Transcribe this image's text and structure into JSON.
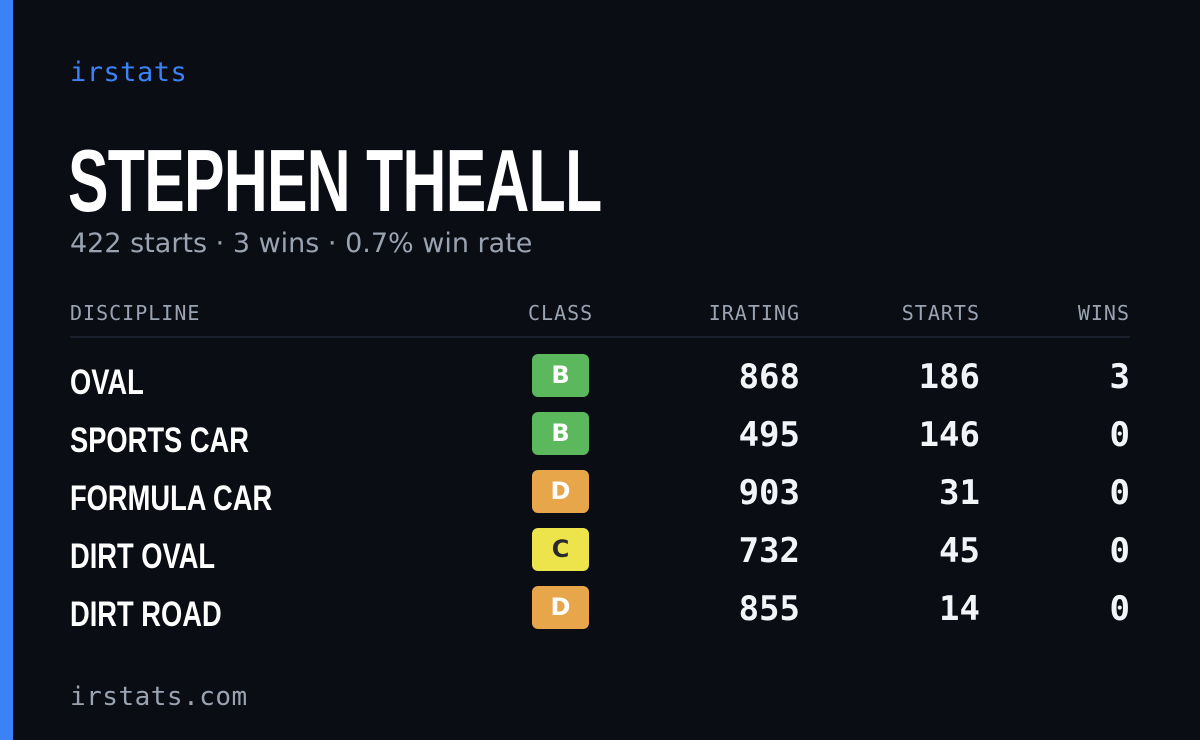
{
  "brand": "irstats",
  "driver": {
    "name": "STEPHEN THEALL",
    "summary": "422 starts · 3 wins · 0.7% win rate"
  },
  "table": {
    "headers": {
      "discipline": "DISCIPLINE",
      "class": "CLASS",
      "irating": "IRATING",
      "starts": "STARTS",
      "wins": "WINS"
    },
    "rows": [
      {
        "discipline": "OVAL",
        "class": "B",
        "class_color": "#5cb85c",
        "class_text_color": "#ffffff",
        "irating": "868",
        "starts": "186",
        "wins": "3"
      },
      {
        "discipline": "SPORTS CAR",
        "class": "B",
        "class_color": "#5cb85c",
        "class_text_color": "#ffffff",
        "irating": "495",
        "starts": "146",
        "wins": "0"
      },
      {
        "discipline": "FORMULA CAR",
        "class": "D",
        "class_color": "#e8a64b",
        "class_text_color": "#ffffff",
        "irating": "903",
        "starts": "31",
        "wins": "0"
      },
      {
        "discipline": "DIRT OVAL",
        "class": "C",
        "class_color": "#ece44a",
        "class_text_color": "#2a2a2a",
        "irating": "732",
        "starts": "45",
        "wins": "0"
      },
      {
        "discipline": "DIRT ROAD",
        "class": "D",
        "class_color": "#e8a64b",
        "class_text_color": "#ffffff",
        "irating": "855",
        "starts": "14",
        "wins": "0"
      }
    ]
  },
  "footer": "irstats.com",
  "colors": {
    "accent": "#3b82f6",
    "background": "#0b0d14",
    "muted_text": "#9aa3b2"
  }
}
